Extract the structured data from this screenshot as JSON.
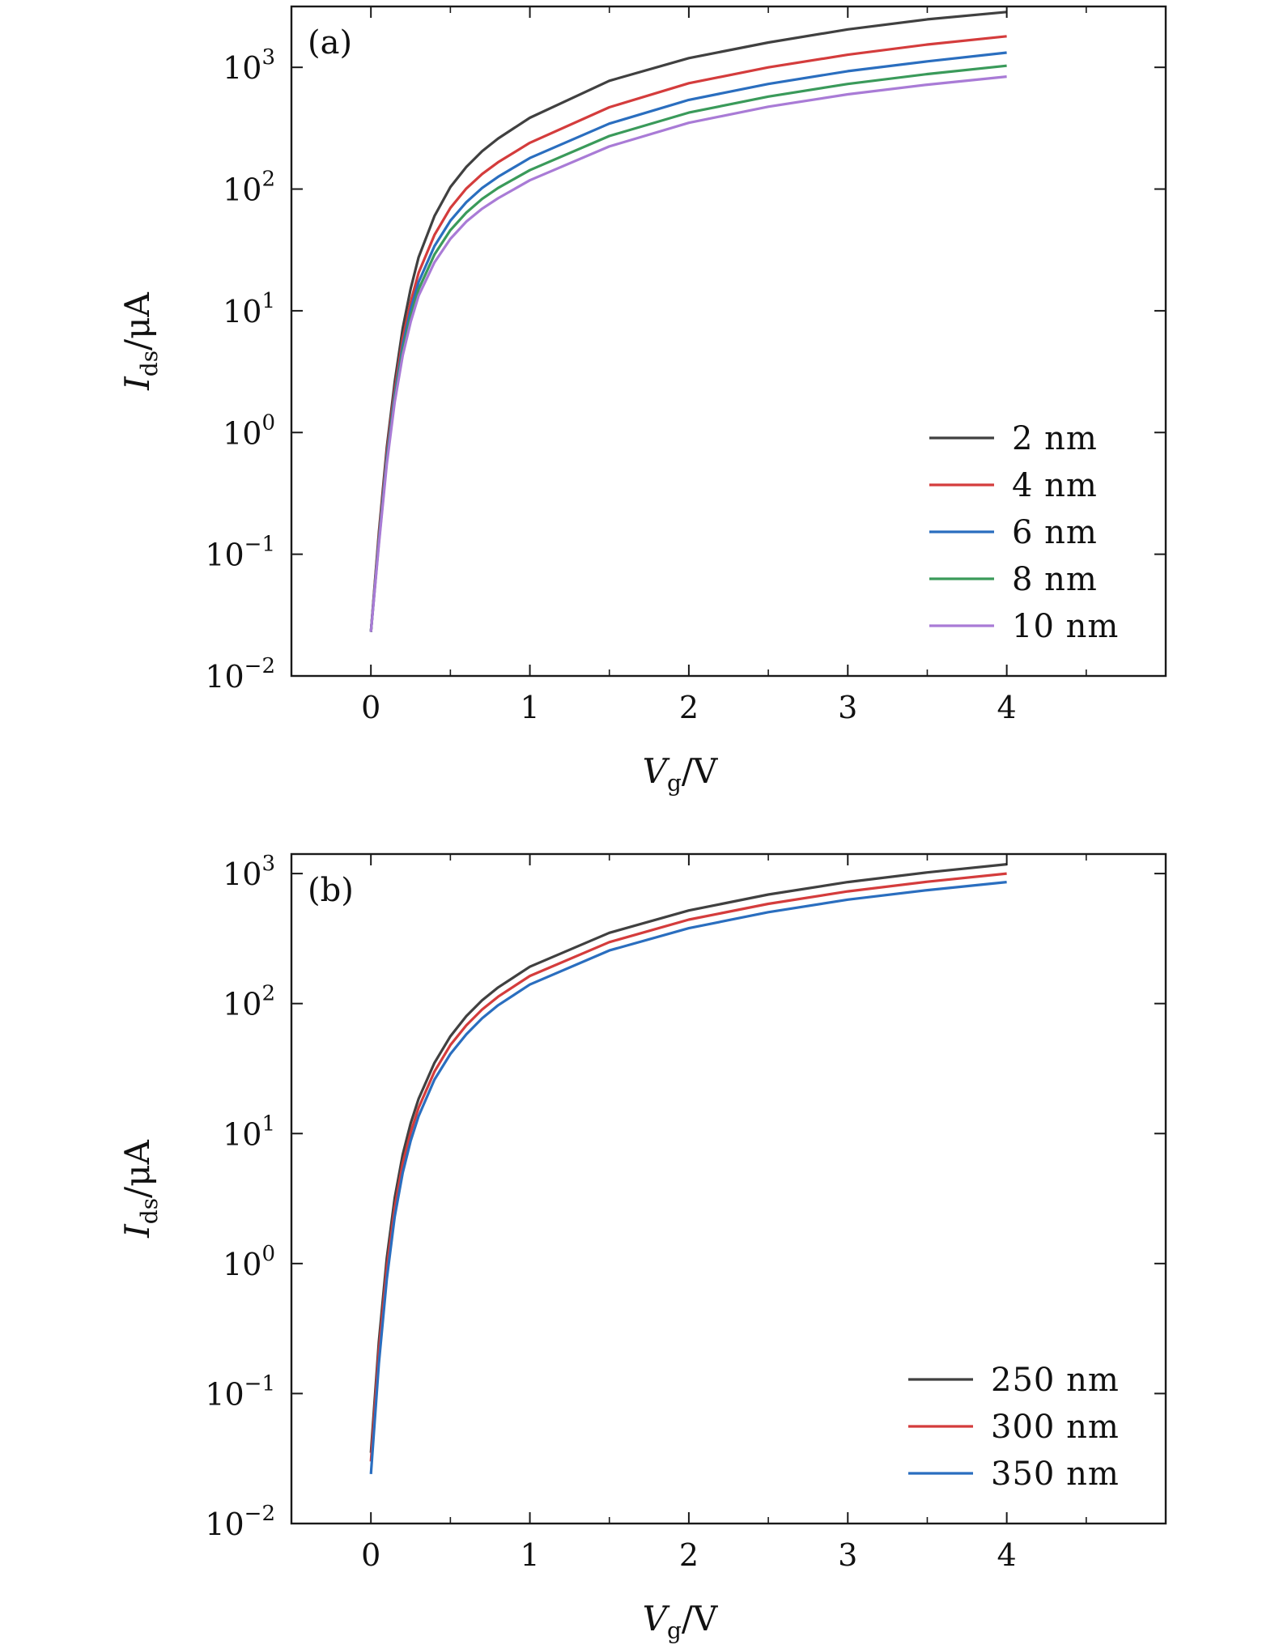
{
  "chart_data": [
    {
      "type": "line",
      "panel_label": "(a)",
      "xlabel": {
        "symbol": "V",
        "subscript": "g",
        "unit": "/V"
      },
      "ylabel": {
        "symbol": "I",
        "subscript": "ds",
        "unit": "/μA"
      },
      "xlim": [
        -0.5,
        5.0
      ],
      "ylim": [
        0.01,
        3162
      ],
      "yscale": "log",
      "xticks": [
        0,
        1,
        2,
        3,
        4
      ],
      "xtick_labels": [
        "0",
        "1",
        "2",
        "3",
        "4"
      ],
      "yticks": [
        0.01,
        0.1,
        1,
        10,
        100,
        1000
      ],
      "ytick_labels": [
        {
          "base": "10",
          "exp": "−2"
        },
        {
          "base": "10",
          "exp": "−1"
        },
        {
          "base": "10",
          "exp": "0"
        },
        {
          "base": "10",
          "exp": "1"
        },
        {
          "base": "10",
          "exp": "2"
        },
        {
          "base": "10",
          "exp": "3"
        }
      ],
      "grid": false,
      "legend_position": "lower-right",
      "series": [
        {
          "name": "2 nm",
          "color": "#404040",
          "x": [
            0,
            0.05,
            0.1,
            0.15,
            0.2,
            0.25,
            0.3,
            0.4,
            0.5,
            0.6,
            0.7,
            0.8,
            1.0,
            1.5,
            2.0,
            2.5,
            3.0,
            3.5,
            4.0
          ],
          "y": [
            0.023,
            0.15,
            0.75,
            2.6,
            7.2,
            15.2,
            27.5,
            60,
            104,
            152,
            205,
            260,
            385,
            775,
            1190,
            1600,
            2050,
            2480,
            2850
          ]
        },
        {
          "name": "4 nm",
          "color": "#d43c3c",
          "x": [
            0,
            0.05,
            0.1,
            0.15,
            0.2,
            0.25,
            0.3,
            0.4,
            0.5,
            0.6,
            0.7,
            0.8,
            1.0,
            1.5,
            2.0,
            2.5,
            3.0,
            3.5,
            4.0
          ],
          "y": [
            0.023,
            0.14,
            0.68,
            2.25,
            5.9,
            11.8,
            20.5,
            42,
            70,
            101,
            133,
            166,
            240,
            470,
            740,
            1000,
            1270,
            1540,
            1800
          ]
        },
        {
          "name": "6 nm",
          "color": "#2a6ebf",
          "x": [
            0,
            0.05,
            0.1,
            0.15,
            0.2,
            0.25,
            0.3,
            0.4,
            0.5,
            0.6,
            0.7,
            0.8,
            1.0,
            1.5,
            2.0,
            2.5,
            3.0,
            3.5,
            4.0
          ],
          "y": [
            0.023,
            0.13,
            0.62,
            2.05,
            5.2,
            10.2,
            17.2,
            34,
            55,
            78,
            102,
            126,
            180,
            345,
            540,
            730,
            930,
            1120,
            1320
          ]
        },
        {
          "name": "8 nm",
          "color": "#3a9a5a",
          "x": [
            0,
            0.05,
            0.1,
            0.15,
            0.2,
            0.25,
            0.3,
            0.4,
            0.5,
            0.6,
            0.7,
            0.8,
            1.0,
            1.5,
            2.0,
            2.5,
            3.0,
            3.5,
            4.0
          ],
          "y": [
            0.023,
            0.125,
            0.58,
            1.9,
            4.7,
            9.0,
            15.0,
            29,
            46,
            64,
            83,
            102,
            143,
            273,
            425,
            575,
            730,
            880,
            1030
          ]
        },
        {
          "name": "10 nm",
          "color": "#a97bd6",
          "x": [
            0,
            0.05,
            0.1,
            0.15,
            0.2,
            0.25,
            0.3,
            0.4,
            0.5,
            0.6,
            0.7,
            0.8,
            1.0,
            1.5,
            2.0,
            2.5,
            3.0,
            3.5,
            4.0
          ],
          "y": [
            0.023,
            0.12,
            0.55,
            1.78,
            4.3,
            8.1,
            13.3,
            25,
            39,
            54,
            69,
            84,
            118,
            224,
            350,
            475,
            600,
            720,
            840
          ]
        }
      ]
    },
    {
      "type": "line",
      "panel_label": "(b)",
      "xlabel": {
        "symbol": "V",
        "subscript": "g",
        "unit": "/V"
      },
      "ylabel": {
        "symbol": "I",
        "subscript": "ds",
        "unit": "/μA"
      },
      "xlim": [
        -0.5,
        5.0
      ],
      "ylim": [
        0.01,
        1413
      ],
      "yscale": "log",
      "xticks": [
        0,
        1,
        2,
        3,
        4
      ],
      "xtick_labels": [
        "0",
        "1",
        "2",
        "3",
        "4"
      ],
      "yticks": [
        0.01,
        0.1,
        1,
        10,
        100,
        1000
      ],
      "ytick_labels": [
        {
          "base": "10",
          "exp": "−2"
        },
        {
          "base": "10",
          "exp": "−1"
        },
        {
          "base": "10",
          "exp": "0"
        },
        {
          "base": "10",
          "exp": "1"
        },
        {
          "base": "10",
          "exp": "2"
        },
        {
          "base": "10",
          "exp": "3"
        }
      ],
      "grid": false,
      "legend_position": "lower-right",
      "series": [
        {
          "name": "250 nm",
          "color": "#404040",
          "x": [
            0,
            0.05,
            0.1,
            0.15,
            0.2,
            0.25,
            0.3,
            0.4,
            0.5,
            0.6,
            0.7,
            0.8,
            1.0,
            1.5,
            2.0,
            2.5,
            3.0,
            3.5,
            4.0
          ],
          "y": [
            0.035,
            0.25,
            1.1,
            3.2,
            6.9,
            12.0,
            18.5,
            35,
            56,
            80,
            106,
            133,
            192,
            350,
            520,
            690,
            860,
            1020,
            1180
          ]
        },
        {
          "name": "300 nm",
          "color": "#d43c3c",
          "x": [
            0,
            0.05,
            0.1,
            0.15,
            0.2,
            0.25,
            0.3,
            0.4,
            0.5,
            0.6,
            0.7,
            0.8,
            1.0,
            1.5,
            2.0,
            2.5,
            3.0,
            3.5,
            4.0
          ],
          "y": [
            0.03,
            0.21,
            0.92,
            2.7,
            5.9,
            10.2,
            15.8,
            30,
            48,
            68,
            90,
            113,
            163,
            297,
            442,
            585,
            730,
            865,
            1000
          ]
        },
        {
          "name": "350 nm",
          "color": "#2a6ebf",
          "x": [
            0,
            0.05,
            0.1,
            0.15,
            0.2,
            0.25,
            0.3,
            0.4,
            0.5,
            0.6,
            0.7,
            0.8,
            1.0,
            1.5,
            2.0,
            2.5,
            3.0,
            3.5,
            4.0
          ],
          "y": [
            0.024,
            0.17,
            0.76,
            2.3,
            5.0,
            8.8,
            13.6,
            26,
            41,
            58,
            77,
            97,
            140,
            256,
            380,
            505,
            630,
            745,
            860
          ]
        }
      ]
    }
  ]
}
